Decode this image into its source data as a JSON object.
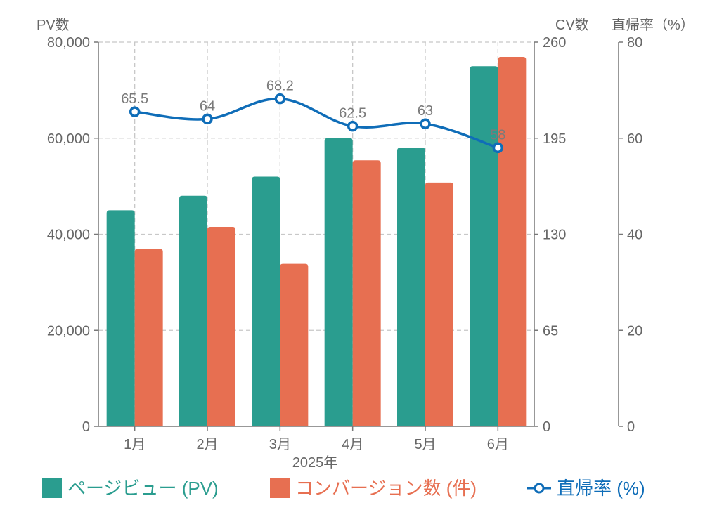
{
  "chart_data": {
    "type": "bar",
    "categories": [
      "1月",
      "2月",
      "3月",
      "4月",
      "5月",
      "6月"
    ],
    "xlabel": "2025年",
    "series": [
      {
        "name": "ページビュー (PV)",
        "type": "bar",
        "axis": "left",
        "color": "#2a9d8f",
        "values": [
          45000,
          48000,
          52000,
          60000,
          58000,
          75000
        ]
      },
      {
        "name": "コンバージョン数 (件)",
        "type": "bar",
        "axis": "right1",
        "color": "#e76f51",
        "values": [
          120,
          135,
          110,
          180,
          165,
          250
        ]
      },
      {
        "name": "直帰率 (%)",
        "type": "line",
        "axis": "right2",
        "color": "#0f6db8",
        "values": [
          65.5,
          64,
          68.2,
          62.5,
          63,
          58
        ],
        "labels": [
          "65.5",
          "64",
          "68.2",
          "62.5",
          "63",
          "58"
        ]
      }
    ],
    "axes": {
      "left": {
        "label": "PV数",
        "ylim": [
          0,
          80000
        ],
        "ticks": [
          0,
          20000,
          40000,
          60000,
          80000
        ],
        "tick_labels": [
          "0",
          "20,000",
          "40,000",
          "60,000",
          "80,000"
        ]
      },
      "right1": {
        "label": "CV数",
        "ylim": [
          0,
          260
        ],
        "ticks": [
          0,
          65,
          130,
          195,
          260
        ],
        "tick_labels": [
          "0",
          "65",
          "130",
          "195",
          "260"
        ]
      },
      "right2": {
        "label": "直帰率（%）",
        "ylim": [
          0,
          80
        ],
        "ticks": [
          0,
          20,
          40,
          60,
          80
        ],
        "tick_labels": [
          "0",
          "20",
          "40",
          "60",
          "80"
        ]
      }
    },
    "legend_position": "bottom",
    "grid": true
  }
}
